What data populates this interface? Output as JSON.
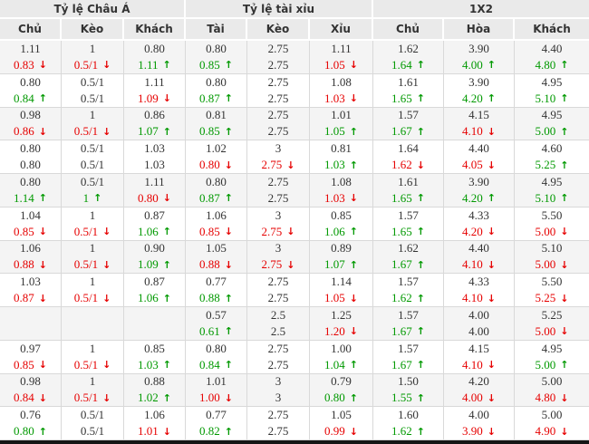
{
  "colors": {
    "up": "#009900",
    "down": "#e60000",
    "header_bg": "#eaeaea",
    "shaded_row_bg": "#f4f4f4",
    "border": "#d9d9d9"
  },
  "icons": {
    "up_arrow": "↑",
    "down_arrow": "↓"
  },
  "table": {
    "sections": [
      {
        "title": "Tỷ lệ Châu Á",
        "columns": [
          "Chủ",
          "Kèo",
          "Khách"
        ]
      },
      {
        "title": "Tỷ lệ tài xỉu",
        "columns": [
          "Tài",
          "Kèo",
          "Xỉu"
        ]
      },
      {
        "title": "1X2",
        "columns": [
          "Chủ",
          "Hòa",
          "Khách"
        ]
      }
    ],
    "groups": [
      {
        "opening": [
          "1.11",
          "1",
          "0.80",
          "0.80",
          "2.75",
          "1.11",
          "1.62",
          "3.90",
          "4.40"
        ],
        "current": [
          {
            "v": "0.83",
            "d": "down"
          },
          {
            "v": "0.5/1",
            "d": "down"
          },
          {
            "v": "1.11",
            "d": "up"
          },
          {
            "v": "0.85",
            "d": "up"
          },
          {
            "v": "2.75",
            "d": ""
          },
          {
            "v": "1.05",
            "d": "down"
          },
          {
            "v": "1.64",
            "d": "up"
          },
          {
            "v": "4.00",
            "d": "up"
          },
          {
            "v": "4.80",
            "d": "up"
          }
        ]
      },
      {
        "opening": [
          "0.80",
          "0.5/1",
          "1.11",
          "0.80",
          "2.75",
          "1.08",
          "1.61",
          "3.90",
          "4.95"
        ],
        "current": [
          {
            "v": "0.84",
            "d": "up"
          },
          {
            "v": "0.5/1",
            "d": ""
          },
          {
            "v": "1.09",
            "d": "down"
          },
          {
            "v": "0.87",
            "d": "up"
          },
          {
            "v": "2.75",
            "d": ""
          },
          {
            "v": "1.03",
            "d": "down"
          },
          {
            "v": "1.65",
            "d": "up"
          },
          {
            "v": "4.20",
            "d": "up"
          },
          {
            "v": "5.10",
            "d": "up"
          }
        ]
      },
      {
        "opening": [
          "0.98",
          "1",
          "0.86",
          "0.81",
          "2.75",
          "1.01",
          "1.57",
          "4.15",
          "4.95"
        ],
        "current": [
          {
            "v": "0.86",
            "d": "down"
          },
          {
            "v": "0.5/1",
            "d": "down"
          },
          {
            "v": "1.07",
            "d": "up"
          },
          {
            "v": "0.85",
            "d": "up"
          },
          {
            "v": "2.75",
            "d": ""
          },
          {
            "v": "1.05",
            "d": "up"
          },
          {
            "v": "1.67",
            "d": "up"
          },
          {
            "v": "4.10",
            "d": "down"
          },
          {
            "v": "5.00",
            "d": "up"
          }
        ]
      },
      {
        "opening": [
          "0.80",
          "0.5/1",
          "1.03",
          "1.02",
          "3",
          "0.81",
          "1.64",
          "4.40",
          "4.60"
        ],
        "current": [
          {
            "v": "0.80",
            "d": ""
          },
          {
            "v": "0.5/1",
            "d": ""
          },
          {
            "v": "1.03",
            "d": ""
          },
          {
            "v": "0.80",
            "d": "down"
          },
          {
            "v": "2.75",
            "d": "down"
          },
          {
            "v": "1.03",
            "d": "up"
          },
          {
            "v": "1.62",
            "d": "down"
          },
          {
            "v": "4.05",
            "d": "down"
          },
          {
            "v": "5.25",
            "d": "up"
          }
        ]
      },
      {
        "opening": [
          "0.80",
          "0.5/1",
          "1.11",
          "0.80",
          "2.75",
          "1.08",
          "1.61",
          "3.90",
          "4.95"
        ],
        "current": [
          {
            "v": "1.14",
            "d": "up"
          },
          {
            "v": "1",
            "d": "up"
          },
          {
            "v": "0.80",
            "d": "down"
          },
          {
            "v": "0.87",
            "d": "up"
          },
          {
            "v": "2.75",
            "d": ""
          },
          {
            "v": "1.03",
            "d": "down"
          },
          {
            "v": "1.65",
            "d": "up"
          },
          {
            "v": "4.20",
            "d": "up"
          },
          {
            "v": "5.10",
            "d": "up"
          }
        ]
      },
      {
        "opening": [
          "1.04",
          "1",
          "0.87",
          "1.06",
          "3",
          "0.85",
          "1.57",
          "4.33",
          "5.50"
        ],
        "current": [
          {
            "v": "0.85",
            "d": "down"
          },
          {
            "v": "0.5/1",
            "d": "down"
          },
          {
            "v": "1.06",
            "d": "up"
          },
          {
            "v": "0.85",
            "d": "down"
          },
          {
            "v": "2.75",
            "d": "down"
          },
          {
            "v": "1.06",
            "d": "up"
          },
          {
            "v": "1.65",
            "d": "up"
          },
          {
            "v": "4.20",
            "d": "down"
          },
          {
            "v": "5.00",
            "d": "down"
          }
        ]
      },
      {
        "opening": [
          "1.06",
          "1",
          "0.90",
          "1.05",
          "3",
          "0.89",
          "1.62",
          "4.40",
          "5.10"
        ],
        "current": [
          {
            "v": "0.88",
            "d": "down"
          },
          {
            "v": "0.5/1",
            "d": "down"
          },
          {
            "v": "1.09",
            "d": "up"
          },
          {
            "v": "0.88",
            "d": "down"
          },
          {
            "v": "2.75",
            "d": "down"
          },
          {
            "v": "1.07",
            "d": "up"
          },
          {
            "v": "1.67",
            "d": "up"
          },
          {
            "v": "4.10",
            "d": "down"
          },
          {
            "v": "5.00",
            "d": "down"
          }
        ]
      },
      {
        "opening": [
          "1.03",
          "1",
          "0.87",
          "0.77",
          "2.75",
          "1.14",
          "1.57",
          "4.33",
          "5.50"
        ],
        "current": [
          {
            "v": "0.87",
            "d": "down"
          },
          {
            "v": "0.5/1",
            "d": "down"
          },
          {
            "v": "1.06",
            "d": "up"
          },
          {
            "v": "0.88",
            "d": "up"
          },
          {
            "v": "2.75",
            "d": ""
          },
          {
            "v": "1.05",
            "d": "down"
          },
          {
            "v": "1.62",
            "d": "up"
          },
          {
            "v": "4.10",
            "d": "down"
          },
          {
            "v": "5.25",
            "d": "down"
          }
        ]
      },
      {
        "opening": [
          "",
          "",
          "",
          "0.57",
          "2.5",
          "1.25",
          "1.57",
          "4.00",
          "5.25"
        ],
        "current": [
          {
            "v": "",
            "d": ""
          },
          {
            "v": "",
            "d": ""
          },
          {
            "v": "",
            "d": ""
          },
          {
            "v": "0.61",
            "d": "up"
          },
          {
            "v": "2.5",
            "d": ""
          },
          {
            "v": "1.20",
            "d": "down"
          },
          {
            "v": "1.67",
            "d": "up"
          },
          {
            "v": "4.00",
            "d": ""
          },
          {
            "v": "5.00",
            "d": "down"
          }
        ]
      },
      {
        "opening": [
          "0.97",
          "1",
          "0.85",
          "0.80",
          "2.75",
          "1.00",
          "1.57",
          "4.15",
          "4.95"
        ],
        "current": [
          {
            "v": "0.85",
            "d": "down"
          },
          {
            "v": "0.5/1",
            "d": "down"
          },
          {
            "v": "1.03",
            "d": "up"
          },
          {
            "v": "0.84",
            "d": "up"
          },
          {
            "v": "2.75",
            "d": ""
          },
          {
            "v": "1.04",
            "d": "up"
          },
          {
            "v": "1.67",
            "d": "up"
          },
          {
            "v": "4.10",
            "d": "down"
          },
          {
            "v": "5.00",
            "d": "up"
          }
        ]
      },
      {
        "opening": [
          "0.98",
          "1",
          "0.88",
          "1.01",
          "3",
          "0.79",
          "1.50",
          "4.20",
          "5.00"
        ],
        "current": [
          {
            "v": "0.84",
            "d": "down"
          },
          {
            "v": "0.5/1",
            "d": "down"
          },
          {
            "v": "1.02",
            "d": "up"
          },
          {
            "v": "1.00",
            "d": "down"
          },
          {
            "v": "3",
            "d": ""
          },
          {
            "v": "0.80",
            "d": "up"
          },
          {
            "v": "1.55",
            "d": "up"
          },
          {
            "v": "4.00",
            "d": "down"
          },
          {
            "v": "4.80",
            "d": "down"
          }
        ]
      },
      {
        "opening": [
          "0.76",
          "0.5/1",
          "1.06",
          "0.77",
          "2.75",
          "1.05",
          "1.60",
          "4.00",
          "5.00"
        ],
        "current": [
          {
            "v": "0.80",
            "d": "up"
          },
          {
            "v": "0.5/1",
            "d": ""
          },
          {
            "v": "1.01",
            "d": "down"
          },
          {
            "v": "0.82",
            "d": "up"
          },
          {
            "v": "2.75",
            "d": ""
          },
          {
            "v": "0.99",
            "d": "down"
          },
          {
            "v": "1.62",
            "d": "up"
          },
          {
            "v": "3.90",
            "d": "down"
          },
          {
            "v": "4.90",
            "d": "down"
          }
        ]
      }
    ]
  }
}
